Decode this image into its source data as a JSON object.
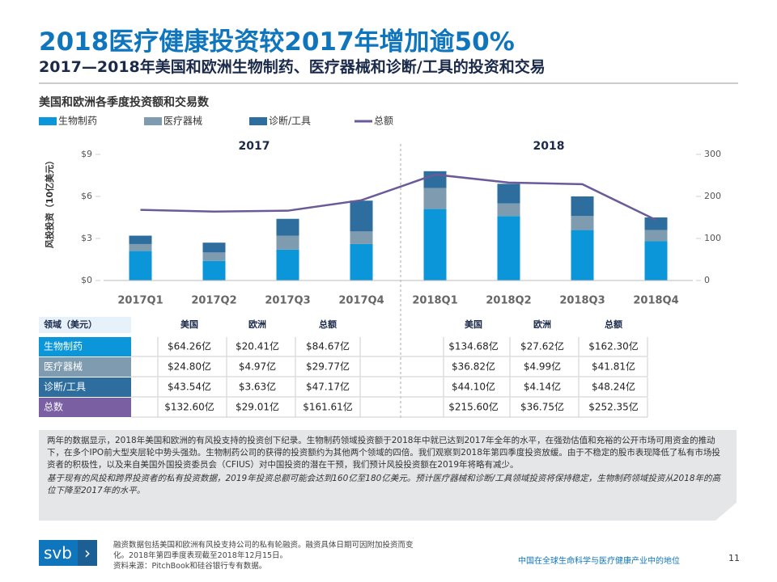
{
  "header": {
    "title": "2018医疗健康投资较2017年增加逾50%",
    "subtitle": "2017—2018年美国和欧洲生物制药、医疗器械和诊断/工具的投资和交易"
  },
  "chart_data": {
    "type": "bar",
    "stacked": true,
    "title": "美国和欧洲各季度投资额和交易数",
    "y_label": "风投投资（10亿美元）",
    "period_labels": [
      "2017",
      "2018"
    ],
    "categories": [
      "2017Q1",
      "2017Q2",
      "2017Q3",
      "2017Q4",
      "2018Q1",
      "2018Q2",
      "2018Q3",
      "2018Q4"
    ],
    "series": [
      {
        "name": "生物制药",
        "color": "#0a96d8",
        "values": [
          2.1,
          1.4,
          2.2,
          2.6,
          5.1,
          4.6,
          3.6,
          2.8
        ]
      },
      {
        "name": "医疗器械",
        "color": "#7f9bb0",
        "values": [
          0.5,
          0.6,
          1.0,
          0.9,
          1.5,
          0.9,
          1.0,
          0.8
        ]
      },
      {
        "name": "诊断/工具",
        "color": "#2e6e9e",
        "values": [
          0.6,
          0.7,
          1.2,
          2.2,
          1.2,
          1.4,
          1.4,
          0.9
        ]
      },
      {
        "name": "总额",
        "type": "line",
        "axis": "y2",
        "color": "#6b5a9a",
        "values": [
          168,
          164,
          166,
          191,
          252,
          233,
          229,
          144
        ]
      }
    ],
    "ylim": [
      0,
      9
    ],
    "yticks": [
      {
        "value": 0,
        "label": "$0"
      },
      {
        "value": 3,
        "label": "$3"
      },
      {
        "value": 6,
        "label": "$6"
      },
      {
        "value": 9,
        "label": "$9"
      }
    ],
    "y2lim": [
      0,
      300
    ],
    "y2ticks": [
      0,
      100,
      200,
      300
    ]
  },
  "table": {
    "header_left": [
      "领域（美元）",
      "美国",
      "欧洲",
      "总额"
    ],
    "header_right": [
      "美国",
      "欧洲",
      "总额"
    ],
    "rows": [
      [
        "生物制药",
        "$64.26亿",
        "$20.41亿",
        "$84.67亿",
        "$134.68亿",
        "$27.62亿",
        "$162.30亿"
      ],
      [
        "医疗器械",
        "$24.80亿",
        "$4.97亿",
        "$29.77亿",
        "$36.82亿",
        "$4.99亿",
        "$41.81亿"
      ],
      [
        "诊断/工具",
        "$43.54亿",
        "$3.63亿",
        "$47.17亿",
        "$44.10亿",
        "$4.14亿",
        "$48.24亿"
      ],
      [
        "总数",
        "$132.60亿",
        "$29.01亿",
        "$161.61亿",
        "$215.60亿",
        "$36.75亿",
        "$252.35亿"
      ]
    ]
  },
  "notes": [
    "两年的数据显示，2018年美国和欧洲的有风投支持的投资创下纪录。生物制药领域投资额于2018年中就已达到2017年全年的水平，在强劲估值和充裕的公开市场可用资金的推动下，在多个IPO前大型夹层轮中势头强劲。生物制药公司的获得的投资额约为其他两个领域的四倍。我们观察到2018年第四季度投资放缓。由于不稳定的股市表现降低了私有市场投资者的积极性，以及来自美国外国投资委员会（CFIUS）对中国投资的潜在干预，我们预计风投投资额在2019年将略有减少。",
    "基于现有的风投和跨界投资者的私有投资数据，2019年投资总额可能会达到160亿至180亿美元。预计医疗器械和诊断/工具领域投资将保持稳定，生物制药领域投资从2018年的高位下降至2017年的水平。"
  ],
  "footer": {
    "logo": "svb",
    "note": "融资数据包括美国和欧洲有风投支持公司的私有轮融资。融资具体日期可因附加投资而变化。2018年第四季度表现截至2018年12月15日。",
    "source": "资料来源：PitchBook和硅谷银行专有数据。",
    "caption": "中国在全球生命科学与医疗健康产业中的地位",
    "page": "11"
  }
}
